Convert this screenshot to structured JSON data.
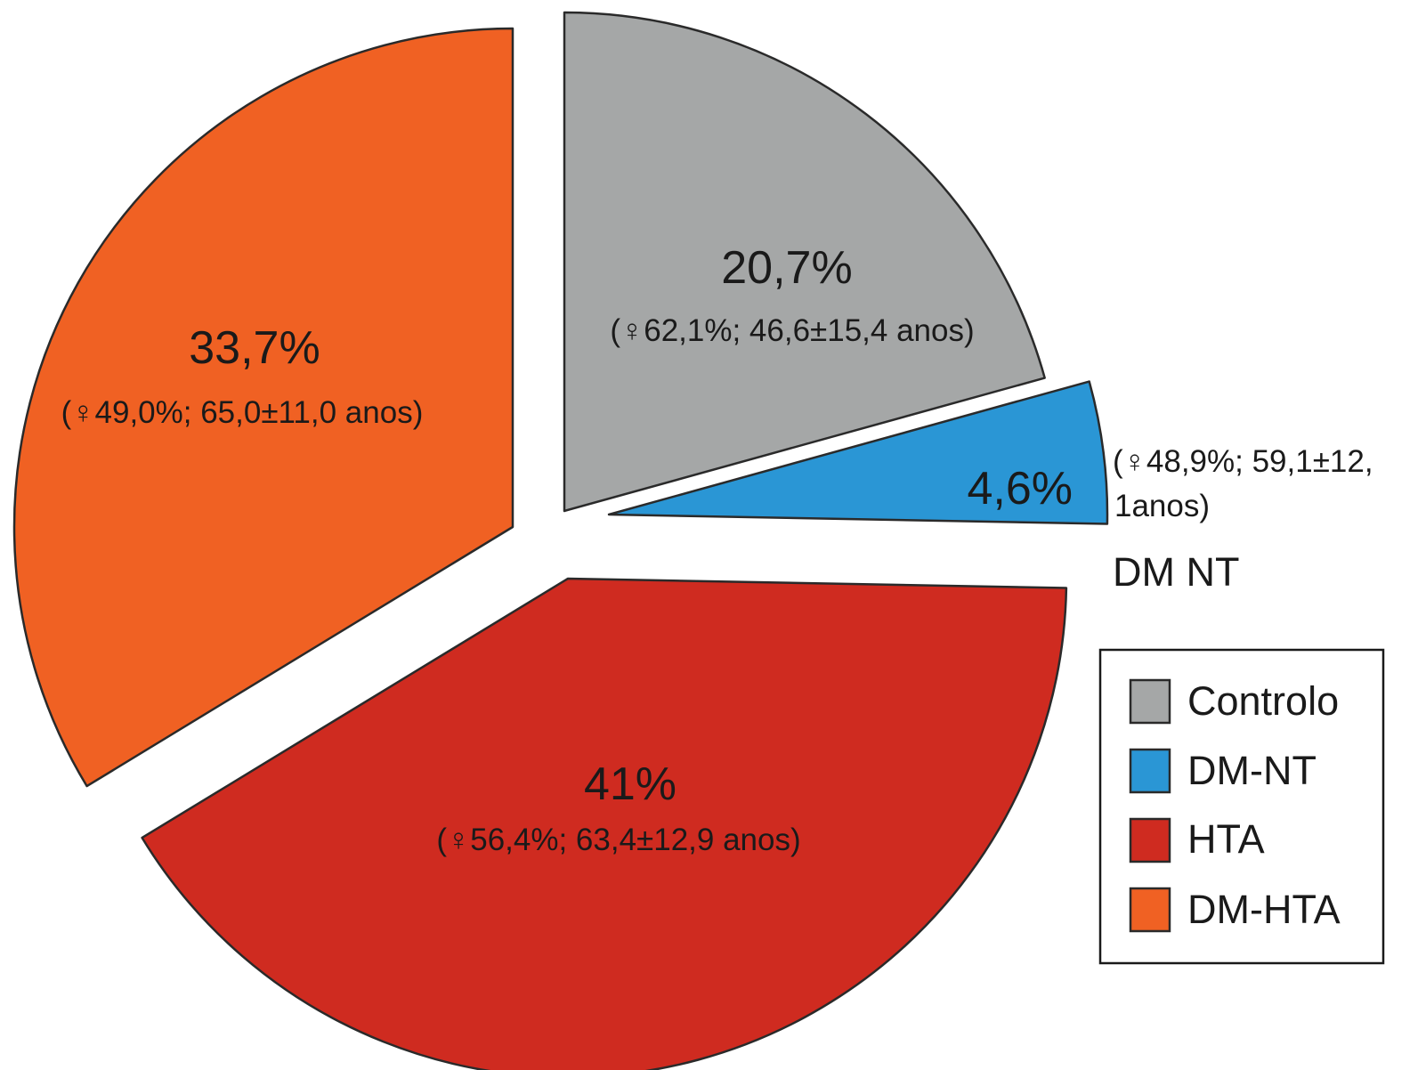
{
  "chart_data": {
    "type": "pie",
    "slices": [
      {
        "name": "Controlo",
        "value": 20.7,
        "label": "20,7%",
        "sublabel": "(♀62,1%; 46,6±15,4 anos)",
        "color": "#a5a7a7"
      },
      {
        "name": "DM-NT",
        "value": 4.6,
        "label": "4,6%",
        "sublabel_line1": "(♀48,9%; 59,1±12,",
        "sublabel_line2": "1anos)",
        "side_label": "DM NT",
        "color": "#2a96d5"
      },
      {
        "name": "HTA",
        "value": 41,
        "label": "41%",
        "sublabel": "(♀56,4%; 63,4±12,9 anos)",
        "color": "#cf2b20"
      },
      {
        "name": "DM-HTA",
        "value": 33.7,
        "label": "33,7%",
        "sublabel": "(♀49,0%; 65,0±11,0 anos)",
        "color": "#f06123"
      }
    ],
    "exploded": true,
    "start_angle_deg": 0,
    "direction": "clockwise",
    "legend_position": "right",
    "legend": [
      "Controlo",
      "DM-NT",
      "HTA",
      "DM-HTA"
    ]
  }
}
